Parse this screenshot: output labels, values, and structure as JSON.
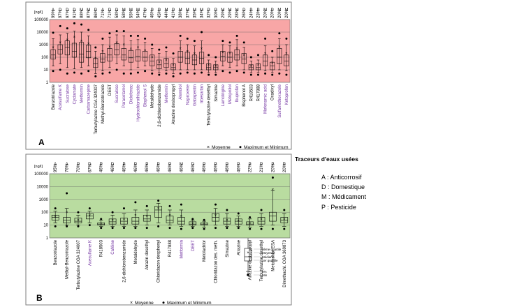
{
  "colors": {
    "panel_a_bg": "#f8a6a6",
    "panel_b_bg": "#b9dca0",
    "med_label": "#7030a0",
    "title": "#7030a0"
  },
  "side_title": "Traceurs d'eaux usées",
  "codes": [
    {
      "text": "A : Anticorrosif"
    },
    {
      "text": "D : Domestique"
    },
    {
      "text": "M : Médicament"
    },
    {
      "text": "P : Pesticide"
    }
  ],
  "boxplot_legend": {
    "max": "Max",
    "p95": "95%",
    "q3": "3ème quartile",
    "mean": "Moyenne",
    "median": "Médiane",
    "q1": "1er quartile",
    "p5": "5%",
    "min": "Min"
  },
  "chart_data": [
    {
      "type": "boxplot",
      "panel_label": "A",
      "unit": "[ng/l]",
      "yscale": "log",
      "ylim": [
        1,
        100000
      ],
      "yticks": [
        "1",
        "10",
        "100",
        "1000",
        "10000",
        "100000"
      ],
      "legend": {
        "mean": "Moyenne",
        "minmax": "Maximum et Minimum",
        "placement": "bottom-right"
      },
      "categories": [
        "Benzotriazole",
        "Acesulfame K",
        "Sucralose",
        "Cyclamate",
        "Metformin",
        "Carbamazepine",
        "Terbutylazine CGA 324007",
        "Methyl-Benzotriazole",
        "DEET",
        "Sucralose",
        "Paracetamol",
        "Diclofenac",
        "Hydrochlorothiazide",
        "Bisphenol S",
        "Metaldehyde",
        "2,6-dichlorobenzamide",
        "Metformin",
        "Atrazine desisopropyl",
        "Atenolol",
        "Naproxene",
        "Gabapentin",
        "Irbesartan",
        "Terbutylazine desethyl",
        "Simazine",
        "Lamotrigine",
        "Metoprolol",
        "Ibuprofen",
        "Bisphenol A",
        "R418503",
        "R417888",
        "Mefenamic acid",
        "Oxadixyl",
        "Sulfamethoxazole",
        "Ketoprofen"
      ],
      "med_categories": [
        1,
        2,
        3,
        4,
        5,
        9,
        10,
        11,
        12,
        13,
        16,
        18,
        19,
        20,
        21,
        24,
        25,
        26,
        30,
        32,
        33
      ],
      "codes": [
        "A",
        "D",
        "D",
        "D",
        "M",
        "M",
        "P",
        "A",
        "D",
        "D",
        "M",
        "M",
        "M",
        "D",
        "P",
        "P",
        "M",
        "P",
        "M",
        "M",
        "M",
        "M",
        "P",
        "P",
        "M",
        "M",
        "M",
        "D",
        "P",
        "P",
        "M",
        "P",
        "M",
        "M"
      ],
      "percents": [
        "99%",
        "97%",
        "97%",
        "91%",
        "88%",
        "87%",
        "86%",
        "71%",
        "71%",
        "58%",
        "58%",
        "55%",
        "54%",
        "47%",
        "46%",
        "45%",
        "44%",
        "41%",
        "38%",
        "37%",
        "35%",
        "34%",
        "32%",
        "30%",
        "29%",
        "29%",
        "28%",
        "26%",
        "24%",
        "23%",
        "20%",
        "20%",
        "20%",
        "20%"
      ],
      "stats": [
        {
          "min": 8,
          "p5": 20,
          "q1": 70,
          "median": 150,
          "q3": 400,
          "p95": 3000,
          "max": 9000,
          "mean": 600
        },
        {
          "min": 10,
          "p5": 30,
          "q1": 180,
          "median": 420,
          "q3": 1000,
          "p95": 6000,
          "max": 30000,
          "mean": 1500
        },
        {
          "min": 5,
          "p5": 15,
          "q1": 150,
          "median": 600,
          "q3": 2000,
          "p95": 8000,
          "max": 20000,
          "mean": 2500
        },
        {
          "min": 6,
          "p5": 12,
          "q1": 100,
          "median": 300,
          "q3": 1300,
          "p95": 12000,
          "max": 50000,
          "mean": 4000
        },
        {
          "min": 5,
          "p5": 15,
          "q1": 40,
          "median": 180,
          "q3": 1500,
          "p95": 10000,
          "max": 40000,
          "mean": 2000
        },
        {
          "min": 8,
          "p5": 20,
          "q1": 90,
          "median": 300,
          "q3": 900,
          "p95": 5000,
          "max": 15000,
          "mean": 1200
        },
        {
          "min": 3,
          "p5": 5,
          "q1": 15,
          "median": 30,
          "q3": 80,
          "p95": 300,
          "max": 600,
          "mean": 80
        },
        {
          "min": 5,
          "p5": 8,
          "q1": 40,
          "median": 70,
          "q3": 200,
          "p95": 1000,
          "max": 3000,
          "mean": 300
        },
        {
          "min": 6,
          "p5": 15,
          "q1": 50,
          "median": 150,
          "q3": 500,
          "p95": 4000,
          "max": 8000,
          "mean": 700
        },
        {
          "min": 10,
          "p5": 30,
          "q1": 150,
          "median": 400,
          "q3": 1200,
          "p95": 6000,
          "max": 12000,
          "mean": 1500
        },
        {
          "min": 5,
          "p5": 20,
          "q1": 60,
          "median": 150,
          "q3": 500,
          "p95": 5000,
          "max": 12000,
          "mean": 1000
        },
        {
          "min": 5,
          "p5": 10,
          "q1": 40,
          "median": 90,
          "q3": 350,
          "p95": 2000,
          "max": 5000,
          "mean": 450
        },
        {
          "min": 6,
          "p5": 15,
          "q1": 50,
          "median": 120,
          "q3": 400,
          "p95": 2500,
          "max": 5000,
          "mean": 600
        },
        {
          "min": 8,
          "p5": 20,
          "q1": 50,
          "median": 100,
          "q3": 300,
          "p95": 1500,
          "max": 3000,
          "mean": 350
        },
        {
          "min": 5,
          "p5": 8,
          "q1": 20,
          "median": 50,
          "q3": 150,
          "p95": 500,
          "max": 1000,
          "mean": 100
        },
        {
          "min": 4,
          "p5": 6,
          "q1": 12,
          "median": 25,
          "q3": 60,
          "p95": 200,
          "max": 400,
          "mean": 40
        },
        {
          "min": 5,
          "p5": 8,
          "q1": 15,
          "median": 30,
          "q3": 80,
          "p95": 300,
          "max": 600,
          "mean": 60
        },
        {
          "min": 3,
          "p5": 5,
          "q1": 10,
          "median": 15,
          "q3": 30,
          "p95": 80,
          "max": 200,
          "mean": 25
        },
        {
          "min": 5,
          "p5": 10,
          "q1": 40,
          "median": 100,
          "q3": 300,
          "p95": 2000,
          "max": 5000,
          "mean": 500
        },
        {
          "min": 6,
          "p5": 10,
          "q1": 30,
          "median": 80,
          "q3": 250,
          "p95": 1000,
          "max": 3000,
          "mean": 300
        },
        {
          "min": 5,
          "p5": 10,
          "q1": 25,
          "median": 60,
          "q3": 150,
          "p95": 800,
          "max": 2000,
          "mean": 200
        },
        {
          "min": 6,
          "p5": 10,
          "q1": 30,
          "median": 80,
          "q3": 250,
          "p95": 2000,
          "max": 10000,
          "mean": 500
        },
        {
          "min": 4,
          "p5": 6,
          "q1": 10,
          "median": 15,
          "q3": 30,
          "p95": 60,
          "max": 150,
          "mean": 25
        },
        {
          "min": 4,
          "p5": 6,
          "q1": 10,
          "median": 15,
          "q3": 25,
          "p95": 50,
          "max": 100,
          "mean": 20
        },
        {
          "min": 8,
          "p5": 20,
          "q1": 50,
          "median": 120,
          "q3": 300,
          "p95": 1000,
          "max": 2000,
          "mean": 250
        },
        {
          "min": 6,
          "p5": 15,
          "q1": 40,
          "median": 100,
          "q3": 250,
          "p95": 800,
          "max": 1500,
          "mean": 200
        },
        {
          "min": 8,
          "p5": 20,
          "q1": 60,
          "median": 150,
          "q3": 400,
          "p95": 2500,
          "max": 5000,
          "mean": 500
        },
        {
          "min": 6,
          "p5": 10,
          "q1": 30,
          "median": 70,
          "q3": 200,
          "p95": 600,
          "max": 1500,
          "mean": 150
        },
        {
          "min": 4,
          "p5": 6,
          "q1": 10,
          "median": 15,
          "q3": 25,
          "p95": 50,
          "max": 100,
          "mean": 20
        },
        {
          "min": 4,
          "p5": 6,
          "q1": 10,
          "median": 15,
          "q3": 30,
          "p95": 60,
          "max": 150,
          "mean": 25
        },
        {
          "min": 5,
          "p5": 8,
          "q1": 20,
          "median": 50,
          "q3": 150,
          "p95": 800,
          "max": 3000,
          "mean": 200
        },
        {
          "min": 4,
          "p5": 6,
          "q1": 10,
          "median": 20,
          "q3": 40,
          "p95": 100,
          "max": 300,
          "mean": 35
        },
        {
          "min": 5,
          "p5": 10,
          "q1": 30,
          "median": 100,
          "q3": 500,
          "p95": 3000,
          "max": 8000,
          "mean": 700
        },
        {
          "min": 4,
          "p5": 8,
          "q1": 20,
          "median": 50,
          "q3": 150,
          "p95": 1000,
          "max": 3000,
          "mean": 200
        }
      ]
    },
    {
      "type": "boxplot",
      "panel_label": "B",
      "unit": "[ng/l]",
      "yscale": "log",
      "ylim": [
        1,
        100000
      ],
      "yticks": [
        "1",
        "10",
        "100",
        "1000",
        "10000",
        "100000"
      ],
      "legend": {
        "mean": "Moyenne",
        "minmax": "Maximum et Minimum",
        "placement": "bottom-right"
      },
      "categories": [
        "Benzotriazole",
        "Methyl-Benzotriazole",
        "Terbutylazine CGA 324007",
        "Acesulfame K",
        "R418503",
        "Caféine",
        "2,6-dichlorobenzamide",
        "Metaldehyde",
        "Atrazin desethyl",
        "Chloridazon desphenyl",
        "R417888",
        "Metformin",
        "DEET",
        "Metolachlor",
        "Chloridazon des. meth.",
        "Simazine",
        "Atrazine",
        "Atrazine desisopropyl",
        "Terbutylazine desethyl",
        "Metolachlor ESA",
        "Dimethachl. CGA 369873"
      ],
      "med_categories": [
        3,
        5,
        11,
        12
      ],
      "codes": [
        "A",
        "A",
        "P",
        "D",
        "P",
        "D",
        "P",
        "P",
        "P",
        "P",
        "P",
        "M",
        "D",
        "P",
        "P",
        "P",
        "P",
        "P",
        "P",
        "P",
        "P"
      ],
      "percents": [
        "95%",
        "76%",
        "70%",
        "67%",
        "46%",
        "46%",
        "46%",
        "46%",
        "46%",
        "46%",
        "46%",
        "46%",
        "46%",
        "46%",
        "46%",
        "46%",
        "46%",
        "22%",
        "21%",
        "20%",
        "20%"
      ],
      "stats": [
        {
          "min": 8,
          "p5": 15,
          "q1": 25,
          "median": 40,
          "q3": 60,
          "p95": 120,
          "max": 200,
          "mean": 45
        },
        {
          "min": 8,
          "p5": 10,
          "q1": 15,
          "median": 25,
          "q3": 40,
          "p95": 200,
          "max": 3000,
          "mean": 100
        },
        {
          "min": 8,
          "p5": 10,
          "q1": 15,
          "median": 20,
          "q3": 35,
          "p95": 60,
          "max": 100,
          "mean": 25
        },
        {
          "min": 10,
          "p5": 15,
          "q1": 30,
          "median": 50,
          "q3": 80,
          "p95": 120,
          "max": 200,
          "mean": 55
        },
        {
          "min": 6,
          "p5": 8,
          "q1": 10,
          "median": 12,
          "q3": 15,
          "p95": 25,
          "max": 30,
          "mean": 13
        },
        {
          "min": 6,
          "p5": 8,
          "q1": 12,
          "median": 18,
          "q3": 30,
          "p95": 60,
          "max": 100,
          "mean": 25
        },
        {
          "min": 6,
          "p5": 8,
          "q1": 12,
          "median": 20,
          "q3": 35,
          "p95": 80,
          "max": 200,
          "mean": 30
        },
        {
          "min": 6,
          "p5": 8,
          "q1": 12,
          "median": 20,
          "q3": 40,
          "p95": 150,
          "max": 600,
          "mean": 60
        },
        {
          "min": 6,
          "p5": 10,
          "q1": 20,
          "median": 30,
          "q3": 60,
          "p95": 150,
          "max": 300,
          "mean": 50
        },
        {
          "min": 8,
          "p5": 15,
          "q1": 40,
          "median": 150,
          "q3": 300,
          "p95": 500,
          "max": 800,
          "mean": 200
        },
        {
          "min": 6,
          "p5": 10,
          "q1": 15,
          "median": 25,
          "q3": 50,
          "p95": 150,
          "max": 300,
          "mean": 60
        },
        {
          "min": 5,
          "p5": 8,
          "q1": 12,
          "median": 20,
          "q3": 40,
          "p95": 150,
          "max": 400,
          "mean": 50
        },
        {
          "min": 6,
          "p5": 8,
          "q1": 10,
          "median": 12,
          "q3": 18,
          "p95": 25,
          "max": 30,
          "mean": 13
        },
        {
          "min": 5,
          "p5": 7,
          "q1": 10,
          "median": 12,
          "q3": 15,
          "p95": 20,
          "max": 25,
          "mean": 13
        },
        {
          "min": 6,
          "p5": 10,
          "q1": 20,
          "median": 40,
          "q3": 80,
          "p95": 200,
          "max": 400,
          "mean": 60
        },
        {
          "min": 6,
          "p5": 8,
          "q1": 12,
          "median": 20,
          "q3": 35,
          "p95": 80,
          "max": 150,
          "mean": 25
        },
        {
          "min": 6,
          "p5": 8,
          "q1": 12,
          "median": 20,
          "q3": 30,
          "p95": 50,
          "max": 80,
          "mean": 22
        },
        {
          "min": 5,
          "p5": 7,
          "q1": 10,
          "median": 12,
          "q3": 18,
          "p95": 30,
          "max": 40,
          "mean": 14
        },
        {
          "min": 5,
          "p5": 8,
          "q1": 12,
          "median": 20,
          "q3": 40,
          "p95": 80,
          "max": 150,
          "mean": 30
        },
        {
          "min": 5,
          "p5": 10,
          "q1": 20,
          "median": 50,
          "q3": 100,
          "p95": 5000,
          "max": 50000,
          "mean": 6000
        },
        {
          "min": 5,
          "p5": 8,
          "q1": 15,
          "median": 25,
          "q3": 40,
          "p95": 80,
          "max": 150,
          "mean": 30
        }
      ]
    }
  ]
}
